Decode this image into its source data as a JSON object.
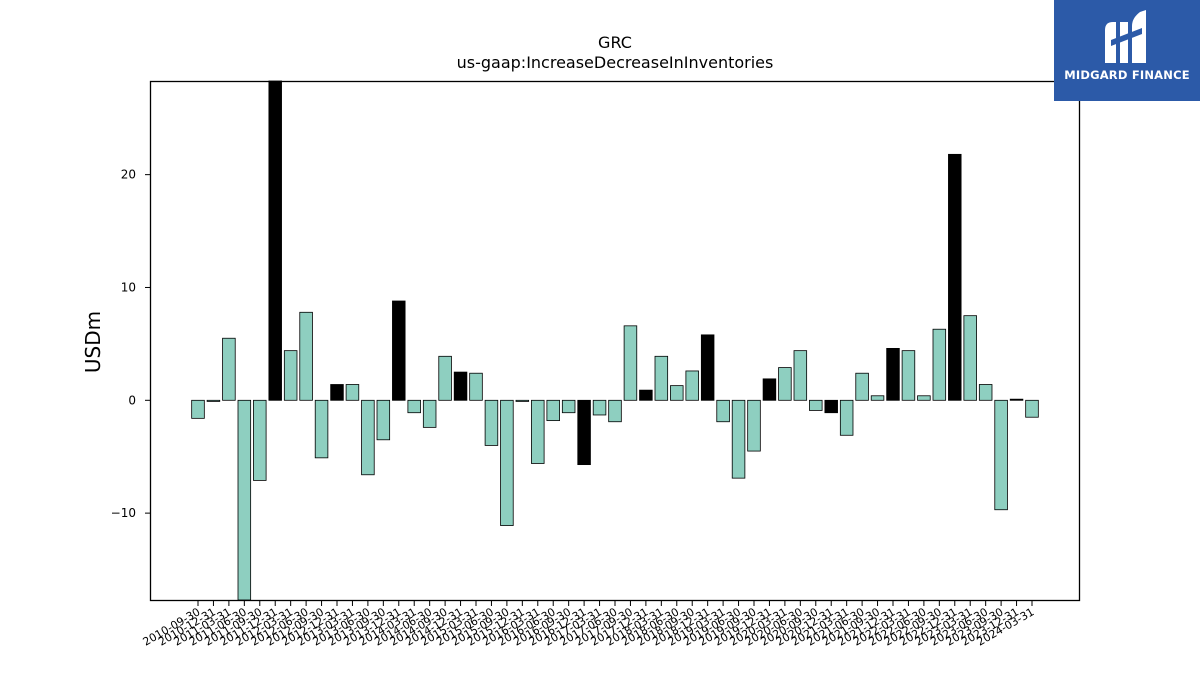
{
  "chart_data": {
    "type": "bar",
    "title": "GRC",
    "subtitle": "us-gaap:IncreaseDecreaseInInventories",
    "xlabel": "",
    "ylabel": "USDm",
    "ylim": [
      -17.7,
      28.3
    ],
    "yticks": [
      -10,
      0,
      10,
      20
    ],
    "grid": false,
    "colors": {
      "default": "#8ecfc0",
      "highlight": "#000000",
      "edge": "#000000"
    },
    "categories": [
      "2010-09-30",
      "2010-12-31",
      "2011-03-31",
      "2011-06-30",
      "2011-09-30",
      "2011-12-31",
      "2012-03-31",
      "2012-06-30",
      "2012-09-30",
      "2012-12-31",
      "2013-03-31",
      "2013-06-30",
      "2013-09-30",
      "2013-12-31",
      "2014-03-31",
      "2014-06-30",
      "2014-09-30",
      "2014-12-31",
      "2015-03-31",
      "2015-06-30",
      "2015-09-30",
      "2015-12-31",
      "2016-03-31",
      "2016-06-30",
      "2016-09-30",
      "2016-12-31",
      "2017-03-31",
      "2017-06-30",
      "2017-09-30",
      "2017-12-31",
      "2018-03-31",
      "2018-06-30",
      "2018-09-30",
      "2018-12-31",
      "2019-03-31",
      "2019-06-30",
      "2019-09-30",
      "2019-12-31",
      "2020-03-31",
      "2020-06-30",
      "2020-09-30",
      "2020-12-31",
      "2021-03-31",
      "2021-06-30",
      "2021-09-30",
      "2021-12-31",
      "2022-03-31",
      "2022-06-30",
      "2022-09-30",
      "2022-12-31",
      "2023-03-31",
      "2023-06-30",
      "2023-09-30",
      "2023-12-31",
      "2024-03-31"
    ],
    "values": [
      -1.6,
      -0.1,
      5.5,
      -17.7,
      -7.1,
      28.3,
      4.4,
      7.8,
      -5.1,
      1.4,
      1.4,
      -6.6,
      -3.5,
      8.8,
      -1.1,
      -2.4,
      3.9,
      2.5,
      2.4,
      -4.0,
      -11.1,
      -0.1,
      -5.6,
      -1.8,
      -1.1,
      -5.7,
      -1.3,
      -1.9,
      6.6,
      0.9,
      3.9,
      1.3,
      2.6,
      5.8,
      -1.9,
      -6.9,
      -4.5,
      1.9,
      2.9,
      4.4,
      -0.9,
      -1.1,
      -3.1,
      2.4,
      0.4,
      4.6,
      4.4,
      0.4,
      6.3,
      21.8,
      7.5,
      1.4,
      -9.7,
      0.1,
      -1.5
    ],
    "highlight": [
      false,
      false,
      false,
      false,
      false,
      true,
      false,
      false,
      false,
      true,
      false,
      false,
      false,
      true,
      false,
      false,
      false,
      true,
      false,
      false,
      false,
      false,
      false,
      false,
      false,
      true,
      false,
      false,
      false,
      true,
      false,
      false,
      false,
      true,
      false,
      false,
      false,
      true,
      false,
      false,
      false,
      true,
      false,
      false,
      false,
      true,
      false,
      false,
      false,
      true,
      false,
      false,
      false,
      true,
      false
    ]
  },
  "logo": {
    "text": "MIDGARD FINANCE",
    "color": "#2c5aa8"
  }
}
